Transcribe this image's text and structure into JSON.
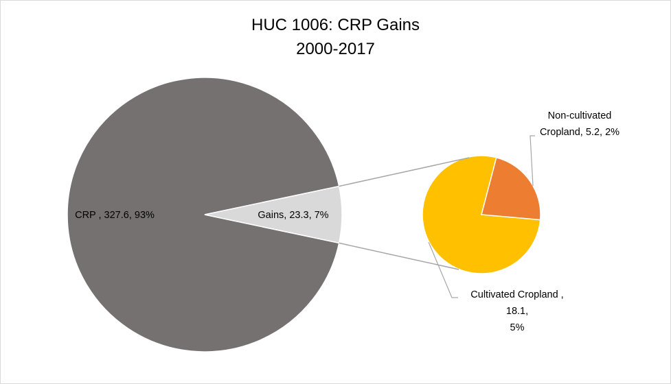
{
  "chart_data": {
    "type": "pie",
    "subtype": "pie-of-pie",
    "title": [
      "HUC 1006: CRP Gains",
      "2000-2017"
    ],
    "main_pie": {
      "slices": [
        {
          "label": "CRP",
          "value": 327.6,
          "percent": "93%",
          "color": "#767171",
          "label_lines": [
            "CRP , 327.6, 93%"
          ]
        },
        {
          "label": "Gains",
          "value": 23.3,
          "percent": "7%",
          "color": "#d9d9d9",
          "label_lines": [
            "Gains, 23.3, 7%"
          ]
        }
      ]
    },
    "secondary_pie": {
      "slices": [
        {
          "label": "Cultivated Cropland",
          "value": 18.1,
          "percent": "5%",
          "color": "#ffc000",
          "label_lines": [
            "Cultivated Cropland ,",
            "18.1,",
            "5%"
          ]
        },
        {
          "label": "Non-cultivated Cropland",
          "value": 5.2,
          "percent": "2%",
          "color": "#ed7d31",
          "label_lines": [
            "Non-cultivated",
            "Cropland, 5.2, 2%"
          ]
        }
      ]
    },
    "connector_color": "#a6a6a6",
    "leader_color": "#a6a6a6",
    "legend": "none"
  }
}
